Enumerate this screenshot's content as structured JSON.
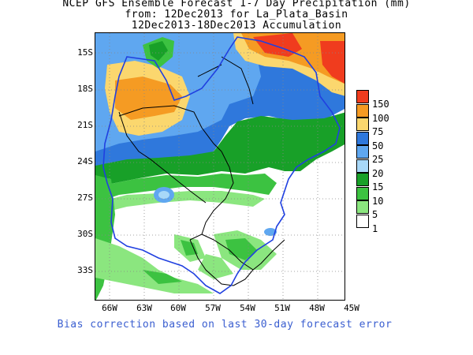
{
  "title_line1": "NCEP GFS Ensemble Forecast 1-7 Day Precipitation (mm)",
  "title_line2": "from: 12Dec2013   for La_Plata_Basin",
  "title_line3": "12Dec2013-18Dec2013 Accumulation",
  "y_ticks": [
    "15S",
    "18S",
    "21S",
    "24S",
    "27S",
    "30S",
    "33S"
  ],
  "x_ticks": [
    "66W",
    "63W",
    "60W",
    "57W",
    "54W",
    "51W",
    "48W",
    "45W"
  ],
  "legend": [
    {
      "label": "150",
      "color": "#f03c1e"
    },
    {
      "label": "100",
      "color": "#f59b23"
    },
    {
      "label": "75",
      "color": "#fbd76e"
    },
    {
      "label": "50",
      "color": "#2f78dc"
    },
    {
      "label": "25",
      "color": "#5fa7f0"
    },
    {
      "label": "20",
      "color": "#a8d8f8"
    },
    {
      "label": "15",
      "color": "#18a028"
    },
    {
      "label": "10",
      "color": "#3cc241"
    },
    {
      "label": "5",
      "color": "#8be67f"
    },
    {
      "label": "1",
      "color": "#ffffff"
    }
  ],
  "note": "Bias correction based on last 30-day forecast error"
}
